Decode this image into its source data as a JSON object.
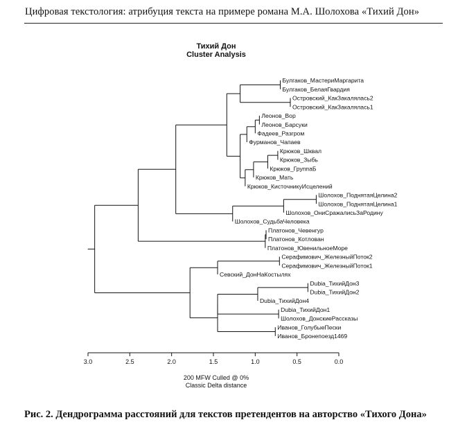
{
  "running_head": "Цифровая текстология: атрибуция текста на примере романа М.А. Шолохова «Тихий Дон»",
  "caption": {
    "label": "Рис. 2. ",
    "text": "Дендрограмма расстояний для текстов претендентов на авторство «Тихого Дона»"
  },
  "chart_data": {
    "type": "dendrogram",
    "title": "Тихий Дон",
    "subtitle": "Cluster Analysis",
    "xlabel_line1": "200 MFW  Culled @ 0%",
    "xlabel_line2": "Classic Delta distance",
    "xlim": [
      3.0,
      0.0
    ],
    "xticks": [
      "3.0",
      "2.5",
      "2.0",
      "1.5",
      "1.0",
      "0.5",
      "0.0"
    ],
    "xtick_values": [
      3.0,
      2.5,
      2.0,
      1.5,
      1.0,
      0.5,
      0.0
    ],
    "leaves": [
      "Булгаков_МастериМаргарита",
      "Булгаков_БелаяГвардия",
      "Островский_КакЗакалялась2",
      "Островский_КакЗакалялась1",
      "Леонов_Вор",
      "Леонов_Барсуки",
      "Фадеев_Разгром",
      "Фурманов_Чапаев",
      "Крюков_Шквал",
      "Крюков_Зыбь",
      "Крюков_ГруппаБ",
      "Крюков_Мать",
      "Крюков_КисточникуИсцелений",
      "Шолохов_ПоднятаяЦелина2",
      "Шолохов_ПоднятаяЦелина1",
      "Шолохов_ОниСражалисьЗаРодину",
      "Шолохов_СудьбаЧеловека",
      "Платонов_Чевенгур",
      "Платонов_Котлован",
      "Платонов_ЮвенильноеМоре",
      "Серафимович_ЖелезныйПоток2",
      "Серафимович_ЖелезныйПоток1",
      "Севский_ДонНаКостылях",
      "Dubia_ТихийДон3",
      "Dubia_ТихийДон2",
      "Dubia_ТихийДон4",
      "Dubia_ТихийДон1",
      "Шолохов_ДонскиеРассказы",
      "Иванов_ГолубыеПески",
      "Иванов_Бронепоезд1469"
    ],
    "merges": [
      {
        "id": "n1",
        "children": [
          0,
          1
        ],
        "height": 0.7
      },
      {
        "id": "n2",
        "children": [
          2,
          3
        ],
        "height": 0.58
      },
      {
        "id": "n3",
        "children": [
          "n1",
          "n2"
        ],
        "height": 1.18
      },
      {
        "id": "n4",
        "children": [
          4,
          5
        ],
        "height": 0.95
      },
      {
        "id": "n5",
        "children": [
          "n4",
          6
        ],
        "height": 1.0
      },
      {
        "id": "n6",
        "children": [
          "n5",
          7
        ],
        "height": 1.1
      },
      {
        "id": "n7",
        "children": [
          8,
          9
        ],
        "height": 0.73
      },
      {
        "id": "n8",
        "children": [
          "n7",
          10
        ],
        "height": 0.85
      },
      {
        "id": "n9",
        "children": [
          "n8",
          11
        ],
        "height": 1.02
      },
      {
        "id": "n10",
        "children": [
          "n9",
          12
        ],
        "height": 1.12
      },
      {
        "id": "n11",
        "children": [
          "n6",
          "n10"
        ],
        "height": 1.18
      },
      {
        "id": "n12",
        "children": [
          "n3",
          "n11"
        ],
        "height": 1.34
      },
      {
        "id": "n13",
        "children": [
          13,
          14
        ],
        "height": 0.27
      },
      {
        "id": "n14",
        "children": [
          "n13",
          15
        ],
        "height": 0.66
      },
      {
        "id": "n15",
        "children": [
          "n14",
          16
        ],
        "height": 1.27
      },
      {
        "id": "n16",
        "children": [
          "n12",
          "n15"
        ],
        "height": 1.95
      },
      {
        "id": "n17",
        "children": [
          17,
          18
        ],
        "height": 0.87
      },
      {
        "id": "n18",
        "children": [
          "n17",
          19
        ],
        "height": 0.88
      },
      {
        "id": "n19",
        "children": [
          "n16",
          "n18"
        ],
        "height": 2.4
      },
      {
        "id": "n20",
        "children": [
          20,
          21
        ],
        "height": 0.71
      },
      {
        "id": "n21",
        "children": [
          "n20",
          22
        ],
        "height": 1.45
      },
      {
        "id": "n22",
        "children": [
          23,
          24
        ],
        "height": 0.37
      },
      {
        "id": "n23",
        "children": [
          "n22",
          25
        ],
        "height": 0.97
      },
      {
        "id": "n24",
        "children": [
          26,
          27
        ],
        "height": 0.72
      },
      {
        "id": "n25",
        "children": [
          "n23",
          "n24"
        ],
        "height": 1.45
      },
      {
        "id": "n26",
        "children": [
          28,
          29
        ],
        "height": 0.76
      },
      {
        "id": "n27",
        "children": [
          "n25",
          "n26"
        ],
        "height": 1.45
      },
      {
        "id": "n28",
        "children": [
          "n21",
          "n27"
        ],
        "height": 1.78
      },
      {
        "id": "n29",
        "children": [
          "n19",
          "n28"
        ],
        "height": 2.92
      }
    ]
  }
}
